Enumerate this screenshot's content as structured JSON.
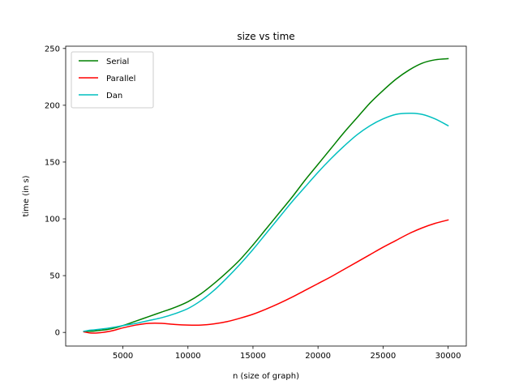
{
  "chart_data": {
    "type": "line",
    "title": "size vs time",
    "xlabel": "n (size of graph)",
    "ylabel": "time (in s)",
    "xlim": [
      600,
      31400
    ],
    "ylim": [
      -12,
      252
    ],
    "xticks": [
      5000,
      10000,
      15000,
      20000,
      25000,
      30000
    ],
    "yticks": [
      0,
      50,
      100,
      150,
      200,
      250
    ],
    "grid": false,
    "legend_position": "top-left",
    "series": [
      {
        "name": "Serial",
        "color": "#008000",
        "x": [
          2000,
          2500,
          3000,
          4000,
          5000,
          6000,
          7000,
          8000,
          9000,
          10000,
          11000,
          12000,
          13000,
          14000,
          15000,
          16000,
          17000,
          18000,
          19000,
          20000,
          21000,
          22000,
          23000,
          24000,
          25000,
          26000,
          27000,
          28000,
          29000,
          30000
        ],
        "values": [
          1,
          1,
          1.5,
          3,
          6,
          10,
          14,
          18,
          22,
          27,
          34,
          43,
          53,
          64,
          77,
          91,
          105,
          119,
          134,
          148,
          162,
          176,
          189,
          202,
          213,
          223,
          231,
          237,
          240,
          241
        ]
      },
      {
        "name": "Parallel",
        "color": "#ff0000",
        "x": [
          2000,
          2500,
          3000,
          4000,
          5000,
          6000,
          7000,
          8000,
          9000,
          10000,
          11000,
          12000,
          13000,
          14000,
          15000,
          16000,
          17000,
          18000,
          19000,
          20000,
          21000,
          22000,
          23000,
          24000,
          25000,
          26000,
          27000,
          28000,
          29000,
          30000
        ],
        "values": [
          0.5,
          -0.5,
          -0.5,
          1,
          4,
          6.5,
          8,
          8,
          7,
          6.5,
          6.5,
          7.5,
          9.5,
          12.5,
          16,
          20.5,
          25.5,
          31,
          37,
          43,
          49,
          55.5,
          62,
          68.5,
          75,
          81,
          87,
          92,
          96,
          99
        ]
      },
      {
        "name": "Dan",
        "color": "#00bfbf",
        "x": [
          2000,
          2500,
          3000,
          4000,
          5000,
          6000,
          7000,
          8000,
          9000,
          10000,
          11000,
          12000,
          13000,
          14000,
          15000,
          16000,
          17000,
          18000,
          19000,
          20000,
          21000,
          22000,
          23000,
          24000,
          25000,
          26000,
          27000,
          28000,
          29000,
          30000
        ],
        "values": [
          1,
          2,
          2.5,
          4,
          6,
          8,
          10.5,
          13,
          16.5,
          21,
          28,
          37,
          48,
          60,
          73,
          87,
          101,
          115,
          128,
          141,
          153,
          164,
          174,
          182,
          188,
          192,
          193,
          192,
          188,
          182
        ]
      }
    ]
  }
}
